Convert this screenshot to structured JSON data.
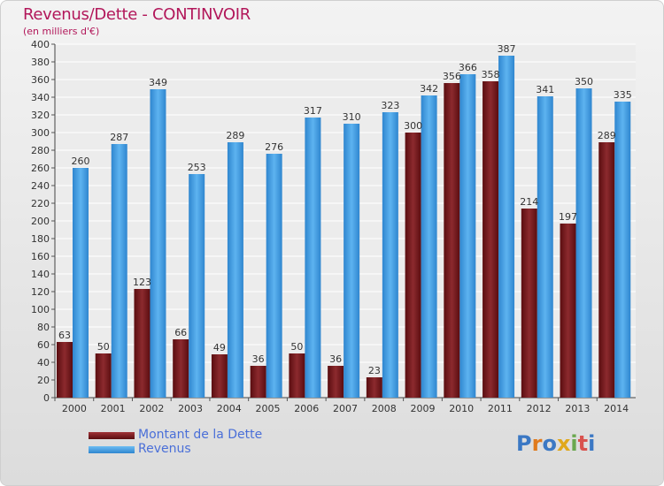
{
  "header": {
    "title": "Revenus/Dette - CONTINVOIR",
    "subtitle": "(en milliers d'€)"
  },
  "legend": {
    "debt_label": "Montant de la Dette",
    "revenue_label": "Revenus"
  },
  "logo": {
    "text": "Proxiti"
  },
  "colors": {
    "debt": "#7a1a1e",
    "revenue": "#3f9ee6",
    "title": "#b2175a",
    "legend_text": "#4a6fd8"
  },
  "chart_data": {
    "type": "bar",
    "title": "Revenus/Dette - CONTINVOIR",
    "subtitle": "(en milliers d'€)",
    "categories": [
      "2000",
      "2001",
      "2002",
      "2003",
      "2004",
      "2005",
      "2006",
      "2007",
      "2008",
      "2009",
      "2010",
      "2011",
      "2012",
      "2013",
      "2014"
    ],
    "series": [
      {
        "name": "Montant de la Dette",
        "values": [
          63,
          50,
          123,
          66,
          49,
          36,
          50,
          36,
          23,
          300,
          356,
          358,
          214,
          197,
          289
        ]
      },
      {
        "name": "Revenus",
        "values": [
          260,
          287,
          349,
          253,
          289,
          276,
          317,
          310,
          323,
          342,
          366,
          387,
          341,
          350,
          335
        ]
      }
    ],
    "ylim": [
      0,
      400
    ],
    "ytick_step": 20,
    "grid": true,
    "legend_position": "bottom-left"
  }
}
